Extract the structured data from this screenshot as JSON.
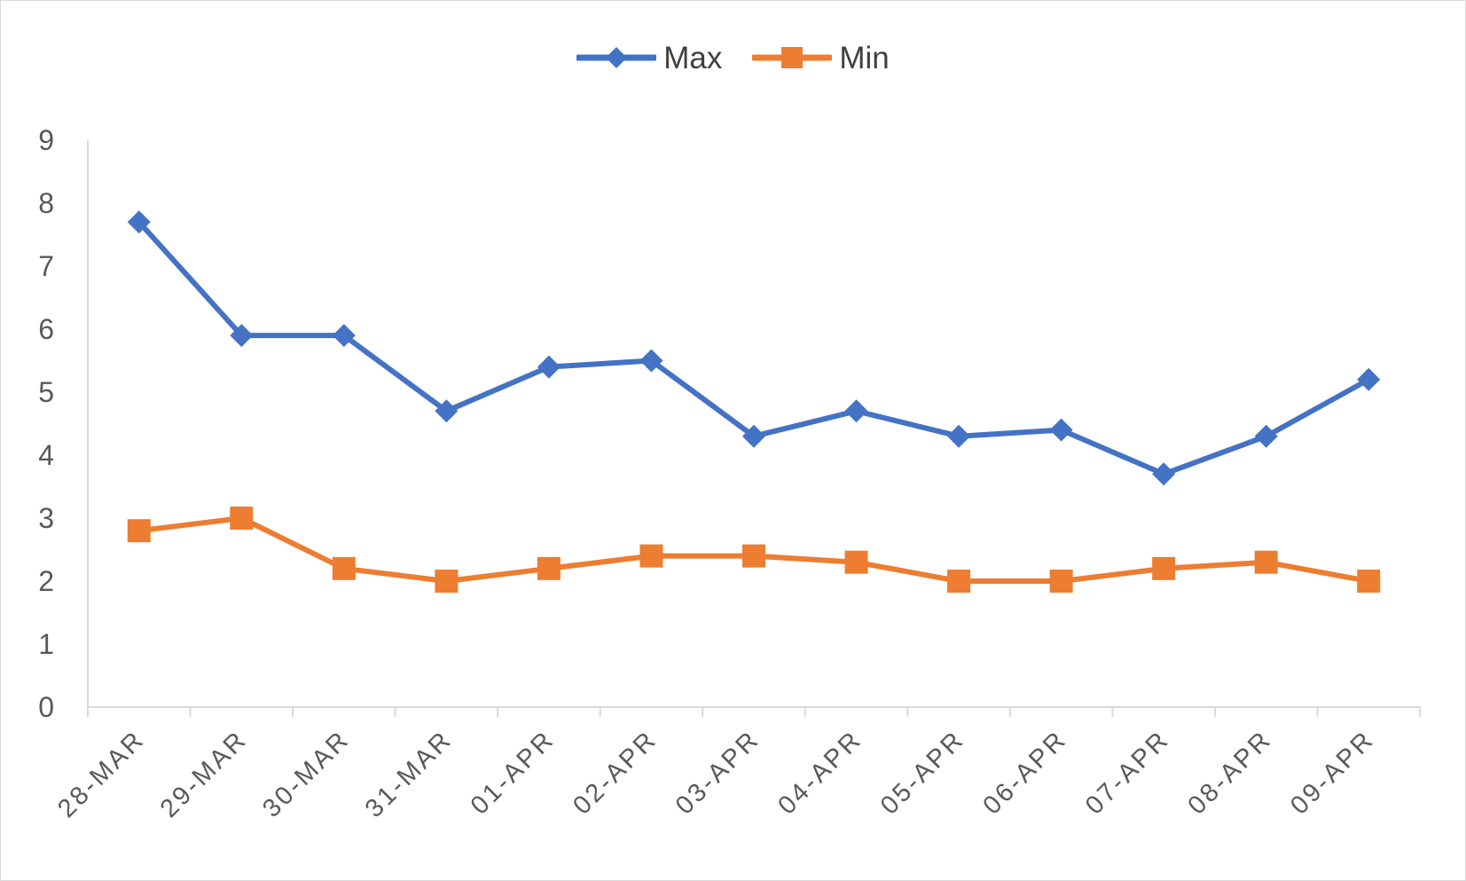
{
  "chart_data": {
    "type": "line",
    "title": "",
    "xlabel": "",
    "ylabel": "",
    "categories": [
      "28-MAR",
      "29-MAR",
      "30-MAR",
      "31-MAR",
      "01-APR",
      "02-APR",
      "03-APR",
      "04-APR",
      "05-APR",
      "06-APR",
      "07-APR",
      "08-APR",
      "09-APR"
    ],
    "series": [
      {
        "name": "Max",
        "color": "#4472C4",
        "marker": "diamond",
        "values": [
          7.7,
          5.9,
          5.9,
          4.7,
          5.4,
          5.5,
          4.3,
          4.7,
          4.3,
          4.4,
          3.7,
          4.3,
          5.2
        ]
      },
      {
        "name": "Min",
        "color": "#ED7D31",
        "marker": "square",
        "values": [
          2.8,
          3.0,
          2.2,
          2.0,
          2.2,
          2.4,
          2.4,
          2.3,
          2.0,
          2.0,
          2.2,
          2.3,
          2.0
        ]
      }
    ],
    "ylim": [
      0,
      9
    ],
    "yticks": [
      0,
      1,
      2,
      3,
      4,
      5,
      6,
      7,
      8,
      9
    ],
    "grid": false,
    "legend_position": "top"
  }
}
